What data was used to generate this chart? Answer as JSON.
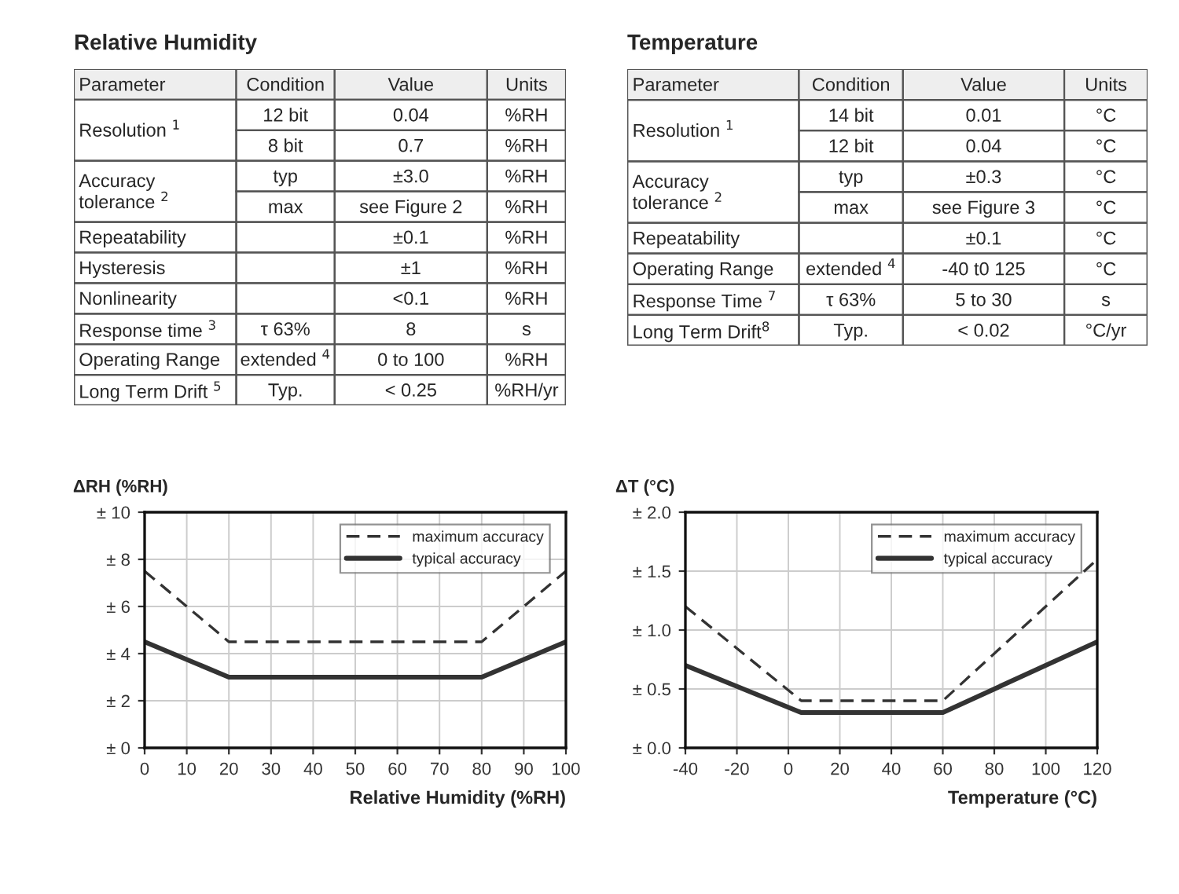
{
  "chart_data": [
    {
      "type": "other",
      "title": "Relative Humidity",
      "categories": [
        "Parameter",
        "Condition",
        "Value",
        "Units"
      ],
      "cell_labels": [
        [
          "Resolution $^{1}$",
          "12 bit",
          "0.04",
          "%RH"
        ],
        [
          null,
          "8 bit",
          "0.7",
          "%RH"
        ],
        [
          "Accuracy\ntolerance $^{2}$",
          "typ",
          "±3.0",
          "%RH"
        ],
        [
          null,
          "max",
          "see Figure 2",
          "%RH"
        ],
        [
          "Repeatability",
          null,
          "±0.1",
          "%RH"
        ],
        [
          "Hysteresis",
          null,
          "±1",
          "%RH"
        ],
        [
          "Nonlinearity",
          null,
          "<0.1",
          "%RH"
        ],
        [
          "Response time $^{3}$",
          "τ 63%",
          "8",
          "s"
        ],
        [
          "Operating Range",
          "extended $^{4}$",
          "0 to 100",
          "%RH"
        ],
        [
          "Long Term Drift $^{5}$",
          "Typ.",
          "< 0.25",
          "%RH/yr"
        ]
      ]
    },
    {
      "type": "other",
      "title": "Temperature",
      "categories": [
        "Parameter",
        "Condition",
        "Value",
        "Units"
      ],
      "cell_labels": [
        [
          "Resolution $^{1}$",
          "14 bit",
          "0.01",
          "°C"
        ],
        [
          null,
          "12 bit",
          "0.04",
          "°C"
        ],
        [
          "Accuracy\ntolerance $^{2}$",
          "typ",
          "±0.3",
          "°C"
        ],
        [
          null,
          "max",
          "see Figure 3",
          "°C"
        ],
        [
          "Repeatability",
          null,
          "±0.1",
          "°C"
        ],
        [
          "Operating Range",
          "extended $^{4}$",
          "-40 t0 125",
          "°C"
        ],
        [
          "Response Time $^{7}$",
          "τ 63%",
          "5 to 30",
          "s"
        ],
        [
          "Long Term Drift$^{8}$",
          "Typ.",
          "< 0.02",
          "°C/yr"
        ]
      ]
    },
    {
      "type": "line",
      "xlabel": "Relative Humidity (%RH)",
      "ylabel": "ΔRH (%RH)",
      "xlim": [
        0,
        100
      ],
      "xticks": [
        0,
        10,
        20,
        30,
        40,
        50,
        60,
        70,
        80,
        90,
        100
      ],
      "ylim": [
        0,
        10
      ],
      "yticks": [
        {
          "value": 0,
          "label": "± 0"
        },
        {
          "value": 2,
          "label": "± 2"
        },
        {
          "value": 4,
          "label": "± 4"
        },
        {
          "value": 6,
          "label": "± 6"
        },
        {
          "value": 8,
          "label": "± 8"
        },
        {
          "value": 10,
          "label": "± 10"
        }
      ],
      "grid": true,
      "legend": "top right",
      "x": [
        0,
        20,
        80,
        100
      ],
      "series": [
        {
          "name": "maximum accuracy",
          "color": "#333333",
          "line_style": "dashed",
          "values": [
            7.5,
            4.5,
            4.5,
            7.5
          ]
        },
        {
          "name": "typical accuracy",
          "color": "#333333",
          "line_style": "solid",
          "values": [
            4.5,
            3,
            3,
            4.5
          ]
        }
      ]
    },
    {
      "type": "line",
      "xlabel": "Temperature (°C)",
      "ylabel": "ΔT (°C)",
      "xlim": [
        -40,
        120
      ],
      "xticks": [
        -40,
        -20,
        0,
        20,
        40,
        60,
        80,
        100,
        120
      ],
      "ylim": [
        0,
        2
      ],
      "yticks": [
        {
          "value": 0,
          "label": "± 0.0"
        },
        {
          "value": 0.5,
          "label": "± 0.5"
        },
        {
          "value": 1,
          "label": "± 1.0"
        },
        {
          "value": 1.5,
          "label": "± 1.5"
        },
        {
          "value": 2,
          "label": "± 2.0"
        }
      ],
      "grid": true,
      "legend": "top right",
      "x": [
        -40,
        5,
        60,
        120
      ],
      "series": [
        {
          "name": "maximum accuracy",
          "color": "#333333",
          "line_style": "dashed",
          "values": [
            1.2,
            0.4,
            0.4,
            1.6
          ]
        },
        {
          "name": "typical accuracy",
          "color": "#333333",
          "line_style": "solid",
          "values": [
            0.7,
            0.3,
            0.3,
            0.9
          ]
        }
      ]
    }
  ]
}
